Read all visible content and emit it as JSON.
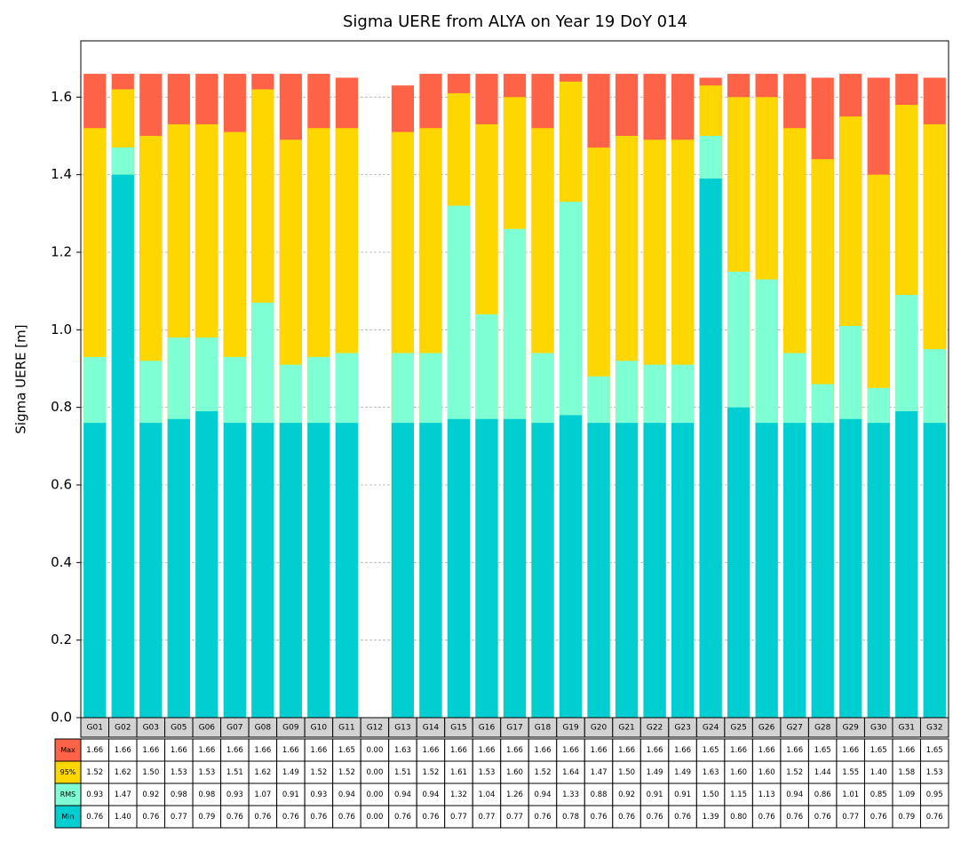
{
  "chart_data": {
    "type": "bar",
    "title": "Sigma UERE from ALYA on Year 19 DoY 014",
    "ylabel": "Sigma UERE [m]",
    "categories": [
      "G01",
      "G02",
      "G03",
      "G05",
      "G06",
      "G07",
      "G08",
      "G09",
      "G10",
      "G11",
      "G12",
      "G13",
      "G14",
      "G15",
      "G16",
      "G17",
      "G18",
      "G19",
      "G20",
      "G21",
      "G22",
      "G23",
      "G24",
      "G25",
      "G26",
      "G27",
      "G28",
      "G29",
      "G30",
      "G31",
      "G32"
    ],
    "series": [
      {
        "name": "Max",
        "color": "#ff6347",
        "values": [
          1.66,
          1.66,
          1.66,
          1.66,
          1.66,
          1.66,
          1.66,
          1.66,
          1.66,
          1.65,
          0.0,
          1.63,
          1.66,
          1.66,
          1.66,
          1.66,
          1.66,
          1.66,
          1.66,
          1.66,
          1.66,
          1.66,
          1.65,
          1.66,
          1.66,
          1.66,
          1.65,
          1.66,
          1.65,
          1.66,
          1.65
        ],
        "value_labels": [
          "1.66",
          "1.66",
          "1.66",
          "1.66",
          "1.66",
          "1.66",
          "1.66",
          "1.66",
          "1.66",
          "1.65",
          "0.00",
          "1.63",
          "1.66",
          "1.66",
          "1.66",
          "1.66",
          "1.66",
          "1.66",
          "1.66",
          "1.66",
          "1.66",
          "1.66",
          "1.65",
          "1.66",
          "1.66",
          "1.66",
          "1.65",
          "1.66",
          "1.65",
          "1.66",
          "1.65"
        ]
      },
      {
        "name": "95%",
        "color": "#ffd700",
        "values": [
          1.52,
          1.62,
          1.5,
          1.53,
          1.53,
          1.51,
          1.62,
          1.49,
          1.52,
          1.52,
          0.0,
          1.51,
          1.52,
          1.61,
          1.53,
          1.6,
          1.52,
          1.64,
          1.47,
          1.5,
          1.49,
          1.49,
          1.63,
          1.6,
          1.6,
          1.52,
          1.44,
          1.55,
          1.4,
          1.58,
          1.53
        ],
        "value_labels": [
          "1.52",
          "1.62",
          "1.50",
          "1.53",
          "1.53",
          "1.51",
          "1.62",
          "1.49",
          "1.52",
          "1.52",
          "0.00",
          "1.51",
          "1.52",
          "1.61",
          "1.53",
          "1.60",
          "1.52",
          "1.64",
          "1.47",
          "1.50",
          "1.49",
          "1.49",
          "1.63",
          "1.60",
          "1.60",
          "1.52",
          "1.44",
          "1.55",
          "1.40",
          "1.58",
          "1.53"
        ]
      },
      {
        "name": "RMS",
        "color": "#7fffd4",
        "values": [
          0.93,
          1.47,
          0.92,
          0.98,
          0.98,
          0.93,
          1.07,
          0.91,
          0.93,
          0.94,
          0.0,
          0.94,
          0.94,
          1.32,
          1.04,
          1.26,
          0.94,
          1.33,
          0.88,
          0.92,
          0.91,
          0.91,
          1.5,
          1.15,
          1.13,
          0.94,
          0.86,
          1.01,
          0.85,
          1.09,
          0.95
        ],
        "value_labels": [
          "0.93",
          "1.47",
          "0.92",
          "0.98",
          "0.98",
          "0.93",
          "1.07",
          "0.91",
          "0.93",
          "0.94",
          "0.00",
          "0.94",
          "0.94",
          "1.32",
          "1.04",
          "1.26",
          "0.94",
          "1.33",
          "0.88",
          "0.92",
          "0.91",
          "0.91",
          "1.50",
          "1.15",
          "1.13",
          "0.94",
          "0.86",
          "1.01",
          "0.85",
          "1.09",
          "0.95"
        ]
      },
      {
        "name": "Min",
        "color": "#00ced1",
        "values": [
          0.76,
          1.4,
          0.76,
          0.77,
          0.79,
          0.76,
          0.76,
          0.76,
          0.76,
          0.76,
          0.0,
          0.76,
          0.76,
          0.77,
          0.77,
          0.77,
          0.76,
          0.78,
          0.76,
          0.76,
          0.76,
          0.76,
          1.39,
          0.8,
          0.76,
          0.76,
          0.76,
          0.77,
          0.76,
          0.79,
          0.76
        ],
        "value_labels": [
          "0.76",
          "1.40",
          "0.76",
          "0.77",
          "0.79",
          "0.76",
          "0.76",
          "0.76",
          "0.76",
          "0.76",
          "0.00",
          "0.76",
          "0.76",
          "0.77",
          "0.77",
          "0.77",
          "0.76",
          "0.78",
          "0.76",
          "0.76",
          "0.76",
          "0.76",
          "1.39",
          "0.80",
          "0.76",
          "0.76",
          "0.76",
          "0.77",
          "0.76",
          "0.79",
          "0.76"
        ]
      }
    ],
    "ylim": [
      0,
      1.745
    ],
    "yticks": [
      {
        "value": 0,
        "label": "0.0"
      },
      {
        "value": 0.2,
        "label": "0.2"
      },
      {
        "value": 0.4,
        "label": "0.4"
      },
      {
        "value": 0.6,
        "label": "0.6"
      },
      {
        "value": 0.8,
        "label": "0.8"
      },
      {
        "value": 1.0,
        "label": "1.0"
      },
      {
        "value": 1.2,
        "label": "1.2"
      },
      {
        "value": 1.4,
        "label": "1.4"
      },
      {
        "value": 1.6,
        "label": "1.6"
      }
    ],
    "grid": true
  }
}
